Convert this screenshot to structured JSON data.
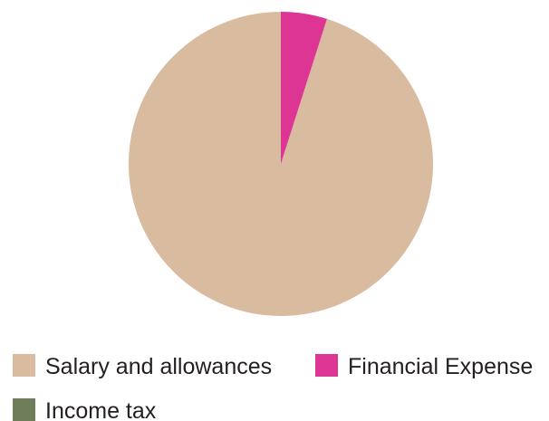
{
  "chart_data": {
    "type": "pie",
    "title": "",
    "slices": [
      {
        "label": "Salary and allowances",
        "value": 95.1,
        "color": "#d9bba0"
      },
      {
        "label": "Financial Expense",
        "value": 4.9,
        "color": "#dd3594"
      },
      {
        "label": "Income tax",
        "value": 0,
        "color": "#6f7d5b"
      }
    ],
    "start_angle_deg": 0,
    "direction": "counterclockwise",
    "legend_position": "bottom",
    "legend": [
      {
        "label": "Salary and allowances",
        "color": "#d9bba0"
      },
      {
        "label": "Financial Expense",
        "color": "#dd3594"
      },
      {
        "label": "Income tax",
        "color": "#6f7d5b"
      }
    ]
  }
}
